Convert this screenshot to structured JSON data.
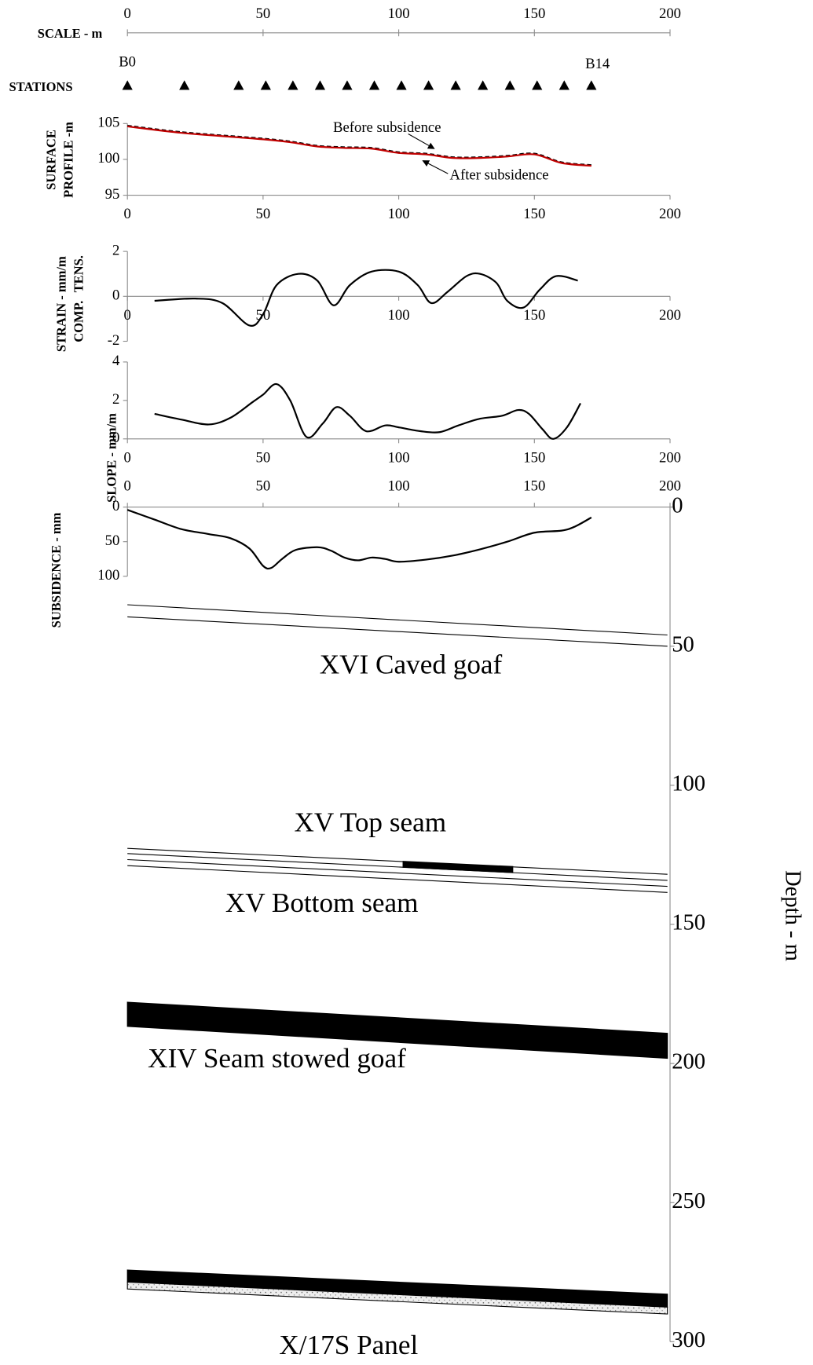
{
  "chart_data": [
    {
      "type": "scale",
      "label": "SCALE - m",
      "xlim": [
        0,
        200
      ],
      "xticks": [
        0,
        50,
        100,
        150,
        200
      ]
    },
    {
      "type": "stations",
      "label": "STATIONS",
      "x": [
        0,
        21,
        41,
        51,
        61,
        71,
        81,
        91,
        101,
        111,
        121,
        131,
        141,
        151,
        161,
        171
      ],
      "point_labels": [
        "B0",
        null,
        null,
        null,
        null,
        null,
        null,
        null,
        null,
        null,
        null,
        null,
        null,
        null,
        null,
        "B14"
      ]
    },
    {
      "type": "line",
      "ylabel": [
        "SURFACE",
        "PROFILE -m"
      ],
      "xlim": [
        0,
        200
      ],
      "xticks": [
        0,
        50,
        100,
        150,
        200
      ],
      "ylim": [
        95,
        105
      ],
      "yticks": [
        95,
        100,
        105
      ],
      "x": [
        0,
        20,
        40,
        50,
        60,
        70,
        80,
        90,
        100,
        110,
        120,
        130,
        140,
        150,
        160,
        171
      ],
      "series": [
        {
          "name": "Before subsidence",
          "color": "#000000",
          "dashed": true,
          "values": [
            104.7,
            103.8,
            103.2,
            102.9,
            102.5,
            101.9,
            101.7,
            101.6,
            101.0,
            100.8,
            100.3,
            100.3,
            100.5,
            100.8,
            99.6,
            99.2
          ]
        },
        {
          "name": "After subsidence",
          "color": "#c00000",
          "dashed": false,
          "values": [
            104.6,
            103.7,
            103.1,
            102.8,
            102.4,
            101.8,
            101.6,
            101.5,
            100.9,
            100.7,
            100.2,
            100.2,
            100.4,
            100.7,
            99.5,
            99.1
          ]
        }
      ]
    },
    {
      "type": "line",
      "ylabel": [
        "STRAIN - mm/m"
      ],
      "annotations": [
        "COMP.",
        "TENS."
      ],
      "xlim": [
        0,
        200
      ],
      "xticks": [
        0,
        50,
        100,
        150,
        200
      ],
      "ylim": [
        -2,
        2
      ],
      "yticks": [
        -2,
        0,
        2
      ],
      "zero_axis": true,
      "x": [
        10,
        25,
        35,
        45,
        50,
        55,
        63,
        70,
        76,
        82,
        90,
        100,
        107,
        112,
        118,
        125,
        130,
        136,
        140,
        146,
        152,
        158,
        166
      ],
      "series": [
        {
          "color": "#000000",
          "values": [
            -0.2,
            -0.1,
            -0.3,
            -1.3,
            -0.8,
            0.5,
            1.0,
            0.7,
            -0.4,
            0.5,
            1.1,
            1.1,
            0.5,
            -0.3,
            0.2,
            0.9,
            1.0,
            0.6,
            -0.2,
            -0.5,
            0.3,
            0.9,
            0.7
          ]
        }
      ]
    },
    {
      "type": "line",
      "ylabel": [
        "SLOPE - mm/m"
      ],
      "xlim": [
        0,
        200
      ],
      "xticks": [
        0,
        50,
        100,
        150,
        200
      ],
      "ylim": [
        0,
        4
      ],
      "yticks": [
        0,
        2,
        4
      ],
      "x": [
        10,
        20,
        30,
        38,
        46,
        50,
        55,
        60,
        66,
        72,
        77,
        82,
        88,
        95,
        100,
        108,
        115,
        122,
        130,
        138,
        144,
        148,
        153,
        157,
        162,
        167
      ],
      "series": [
        {
          "color": "#000000",
          "values": [
            1.3,
            1.0,
            0.75,
            1.1,
            1.9,
            2.3,
            2.85,
            2.0,
            0.1,
            0.8,
            1.65,
            1.2,
            0.4,
            0.7,
            0.6,
            0.4,
            0.35,
            0.7,
            1.05,
            1.2,
            1.5,
            1.3,
            0.5,
            0.0,
            0.6,
            1.85
          ]
        }
      ]
    },
    {
      "type": "line",
      "ylabel": [
        "SUBSIDENCE - mm"
      ],
      "xlim": [
        0,
        200
      ],
      "xticks": [
        0,
        50,
        100,
        150,
        200
      ],
      "xaxis_position": "top",
      "ylim": [
        100,
        0
      ],
      "yticks": [
        0,
        50,
        100
      ],
      "x": [
        0,
        10,
        20,
        30,
        38,
        45,
        50,
        53,
        57,
        62,
        70,
        75,
        80,
        85,
        90,
        95,
        100,
        110,
        120,
        130,
        140,
        150,
        160,
        165,
        171
      ],
      "series": [
        {
          "color": "#000000",
          "values": [
            4,
            18,
            32,
            39,
            45,
            60,
            85,
            88,
            75,
            62,
            58,
            63,
            73,
            77,
            73,
            75,
            79,
            76,
            70,
            61,
            50,
            37,
            34,
            28,
            15
          ]
        }
      ]
    },
    {
      "type": "section",
      "ylabel": "Depth - m",
      "ylim": [
        300,
        0
      ],
      "yticks": [
        0,
        50,
        100,
        150,
        200,
        250,
        300
      ],
      "layer_labels": [
        "XVI Caved goaf",
        "XV Top seam",
        "XV Bottom seam",
        "XIV Seam stowed goaf",
        "X/17S Panel"
      ]
    }
  ]
}
